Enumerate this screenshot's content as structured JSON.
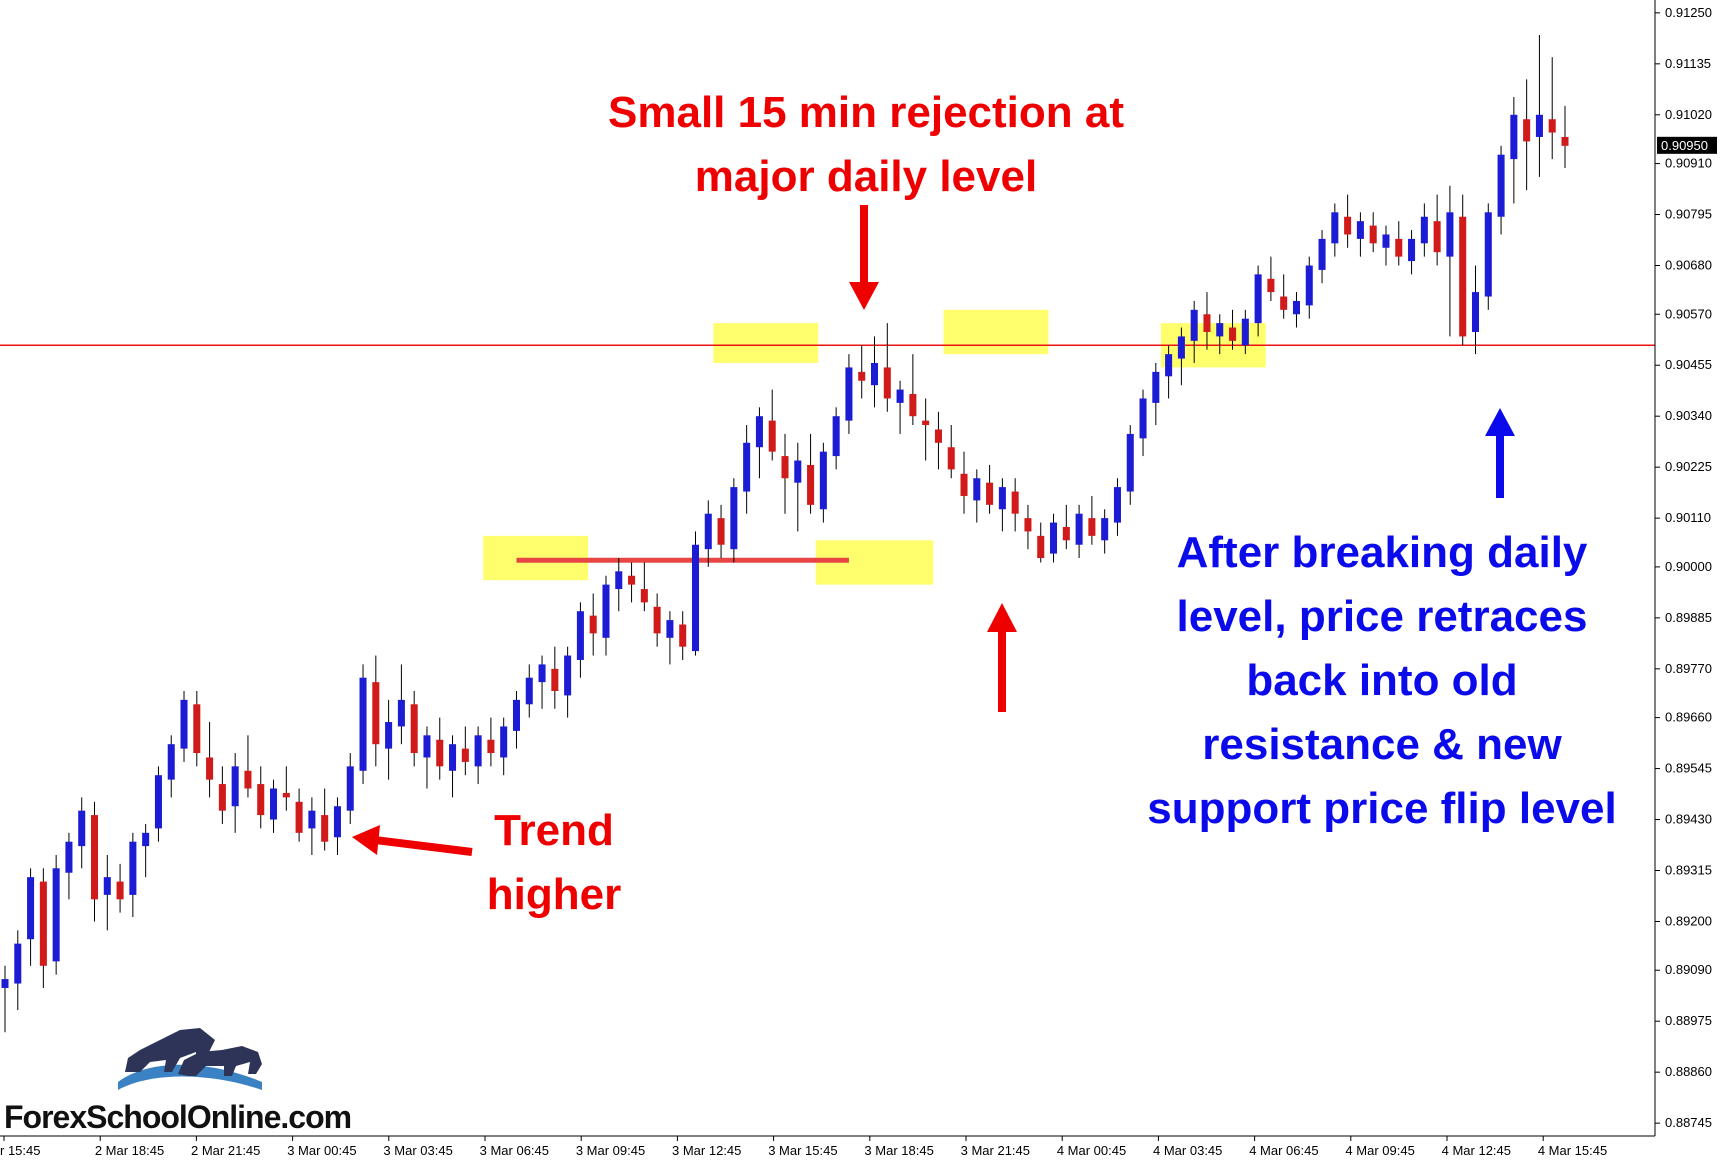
{
  "chart_data": {
    "type": "candlestick",
    "ylim": [
      0.88716,
      0.91279
    ],
    "yticks": [
      "0.91250",
      "0.91135",
      "0.91020",
      "0.90910",
      "0.90795",
      "0.90680",
      "0.90570",
      "0.90455",
      "0.90340",
      "0.90225",
      "0.90110",
      "0.90000",
      "0.89885",
      "0.89770",
      "0.89660",
      "0.89545",
      "0.89430",
      "0.89315",
      "0.89200",
      "0.89090",
      "0.88975",
      "0.88860",
      "0.88745"
    ],
    "ytick_values": [
      0.9125,
      0.91135,
      0.9102,
      0.9091,
      0.90795,
      0.9068,
      0.9057,
      0.90455,
      0.9034,
      0.90225,
      0.9011,
      0.9,
      0.89885,
      0.8977,
      0.8966,
      0.89545,
      0.8943,
      0.89315,
      0.892,
      0.8909,
      0.88975,
      0.8886,
      0.88745
    ],
    "current_price_label": "0.90950",
    "current_price": 0.9095,
    "xticks": [
      "r 15:45",
      "2 Mar 18:45",
      "2 Mar 21:45",
      "3 Mar 00:45",
      "3 Mar 03:45",
      "3 Mar 06:45",
      "3 Mar 09:45",
      "3 Mar 12:45",
      "3 Mar 15:45",
      "3 Mar 18:45",
      "3 Mar 21:45",
      "4 Mar 00:45",
      "4 Mar 03:45",
      "4 Mar 06:45",
      "4 Mar 09:45",
      "4 Mar 12:45",
      "4 Mar 15:45"
    ],
    "candles": [
      [
        0.8905,
        0.891,
        0.8895,
        0.8907
      ],
      [
        0.8906,
        0.8918,
        0.89,
        0.8915
      ],
      [
        0.8916,
        0.8932,
        0.891,
        0.893
      ],
      [
        0.8929,
        0.8932,
        0.8905,
        0.891
      ],
      [
        0.8911,
        0.8935,
        0.8908,
        0.8932
      ],
      [
        0.8931,
        0.894,
        0.8925,
        0.8938
      ],
      [
        0.8937,
        0.8948,
        0.8932,
        0.8945
      ],
      [
        0.8944,
        0.8947,
        0.892,
        0.8925
      ],
      [
        0.8926,
        0.8935,
        0.8918,
        0.893
      ],
      [
        0.8929,
        0.8933,
        0.8922,
        0.8925
      ],
      [
        0.8926,
        0.894,
        0.8921,
        0.8938
      ],
      [
        0.8937,
        0.8942,
        0.893,
        0.894
      ],
      [
        0.8941,
        0.8955,
        0.8938,
        0.8953
      ],
      [
        0.8952,
        0.8962,
        0.8948,
        0.896
      ],
      [
        0.8959,
        0.8972,
        0.8956,
        0.897
      ],
      [
        0.8969,
        0.8972,
        0.8955,
        0.8958
      ],
      [
        0.8957,
        0.8965,
        0.8948,
        0.8952
      ],
      [
        0.8951,
        0.8955,
        0.8942,
        0.8945
      ],
      [
        0.8946,
        0.8958,
        0.894,
        0.8955
      ],
      [
        0.8954,
        0.8962,
        0.8948,
        0.895
      ],
      [
        0.8951,
        0.8955,
        0.8941,
        0.8944
      ],
      [
        0.8943,
        0.8952,
        0.894,
        0.895
      ],
      [
        0.8949,
        0.8955,
        0.8945,
        0.8948
      ],
      [
        0.8947,
        0.895,
        0.8938,
        0.894
      ],
      [
        0.8941,
        0.8948,
        0.8935,
        0.8945
      ],
      [
        0.8944,
        0.895,
        0.8936,
        0.8938
      ],
      [
        0.8939,
        0.8948,
        0.8935,
        0.8946
      ],
      [
        0.8945,
        0.8958,
        0.8942,
        0.8955
      ],
      [
        0.8954,
        0.8978,
        0.8951,
        0.8975
      ],
      [
        0.8974,
        0.898,
        0.8955,
        0.896
      ],
      [
        0.8959,
        0.897,
        0.8952,
        0.8965
      ],
      [
        0.8964,
        0.8978,
        0.896,
        0.897
      ],
      [
        0.8969,
        0.8972,
        0.8955,
        0.8958
      ],
      [
        0.8957,
        0.8964,
        0.895,
        0.8962
      ],
      [
        0.8961,
        0.8966,
        0.8952,
        0.8955
      ],
      [
        0.8954,
        0.8962,
        0.8948,
        0.896
      ],
      [
        0.8959,
        0.8964,
        0.8953,
        0.8956
      ],
      [
        0.8955,
        0.8964,
        0.8951,
        0.8962
      ],
      [
        0.8961,
        0.8966,
        0.8955,
        0.8958
      ],
      [
        0.8957,
        0.8966,
        0.8953,
        0.8964
      ],
      [
        0.8963,
        0.8972,
        0.8959,
        0.897
      ],
      [
        0.8969,
        0.8978,
        0.8966,
        0.8975
      ],
      [
        0.8974,
        0.898,
        0.8968,
        0.8978
      ],
      [
        0.8977,
        0.8982,
        0.8968,
        0.8972
      ],
      [
        0.8971,
        0.8982,
        0.8966,
        0.898
      ],
      [
        0.8979,
        0.8992,
        0.8975,
        0.899
      ],
      [
        0.8989,
        0.8994,
        0.898,
        0.8985
      ],
      [
        0.8984,
        0.8998,
        0.898,
        0.8996
      ],
      [
        0.8995,
        0.9002,
        0.899,
        0.8999
      ],
      [
        0.8998,
        0.9001,
        0.8992,
        0.8996
      ],
      [
        0.8995,
        0.9001,
        0.899,
        0.8992
      ],
      [
        0.8991,
        0.8994,
        0.8982,
        0.8985
      ],
      [
        0.8984,
        0.899,
        0.8978,
        0.8988
      ],
      [
        0.8987,
        0.899,
        0.8979,
        0.8982
      ],
      [
        0.8981,
        0.9008,
        0.898,
        0.9005
      ],
      [
        0.9004,
        0.9015,
        0.9,
        0.9012
      ],
      [
        0.9011,
        0.9014,
        0.9002,
        0.9005
      ],
      [
        0.9004,
        0.902,
        0.9001,
        0.9018
      ],
      [
        0.9017,
        0.9032,
        0.9012,
        0.9028
      ],
      [
        0.9027,
        0.9036,
        0.902,
        0.9034
      ],
      [
        0.9033,
        0.904,
        0.9024,
        0.9026
      ],
      [
        0.9025,
        0.903,
        0.9012,
        0.902
      ],
      [
        0.9019,
        0.9028,
        0.9008,
        0.9024
      ],
      [
        0.9023,
        0.903,
        0.9012,
        0.9014
      ],
      [
        0.9013,
        0.9028,
        0.901,
        0.9026
      ],
      [
        0.9025,
        0.9036,
        0.9022,
        0.9034
      ],
      [
        0.9033,
        0.9048,
        0.903,
        0.9045
      ],
      [
        0.9044,
        0.905,
        0.9038,
        0.9042
      ],
      [
        0.9041,
        0.9052,
        0.9036,
        0.9046
      ],
      [
        0.9045,
        0.9055,
        0.9035,
        0.9038
      ],
      [
        0.9037,
        0.9042,
        0.903,
        0.904
      ],
      [
        0.9039,
        0.9048,
        0.9032,
        0.9034
      ],
      [
        0.9033,
        0.9038,
        0.9024,
        0.9032
      ],
      [
        0.9031,
        0.9035,
        0.9022,
        0.9028
      ],
      [
        0.9027,
        0.9032,
        0.902,
        0.9022
      ],
      [
        0.9021,
        0.9026,
        0.9012,
        0.9016
      ],
      [
        0.9015,
        0.9022,
        0.901,
        0.902
      ],
      [
        0.9019,
        0.9023,
        0.9012,
        0.9014
      ],
      [
        0.9013,
        0.902,
        0.9008,
        0.9018
      ],
      [
        0.9017,
        0.902,
        0.9008,
        0.9012
      ],
      [
        0.9011,
        0.9014,
        0.9004,
        0.9008
      ],
      [
        0.9007,
        0.901,
        0.9001,
        0.9002
      ],
      [
        0.9003,
        0.9012,
        0.9001,
        0.901
      ],
      [
        0.9009,
        0.9014,
        0.9004,
        0.9006
      ],
      [
        0.9005,
        0.9014,
        0.9002,
        0.9012
      ],
      [
        0.9011,
        0.9016,
        0.9005,
        0.9007
      ],
      [
        0.9006,
        0.9013,
        0.9003,
        0.9011
      ],
      [
        0.901,
        0.902,
        0.9007,
        0.9018
      ],
      [
        0.9017,
        0.9032,
        0.9014,
        0.903
      ],
      [
        0.9029,
        0.904,
        0.9025,
        0.9038
      ],
      [
        0.9037,
        0.9046,
        0.9032,
        0.9044
      ],
      [
        0.9043,
        0.905,
        0.9038,
        0.9048
      ],
      [
        0.9047,
        0.9054,
        0.9041,
        0.9052
      ],
      [
        0.9051,
        0.906,
        0.9046,
        0.9058
      ],
      [
        0.9057,
        0.9062,
        0.9049,
        0.9053
      ],
      [
        0.9052,
        0.9057,
        0.9048,
        0.9055
      ],
      [
        0.9054,
        0.9058,
        0.9049,
        0.9051
      ],
      [
        0.905,
        0.9058,
        0.9048,
        0.9056
      ],
      [
        0.9055,
        0.9068,
        0.9052,
        0.9066
      ],
      [
        0.9065,
        0.907,
        0.906,
        0.9062
      ],
      [
        0.9061,
        0.9066,
        0.9056,
        0.9058
      ],
      [
        0.9057,
        0.9062,
        0.9054,
        0.906
      ],
      [
        0.9059,
        0.907,
        0.9056,
        0.9068
      ],
      [
        0.9067,
        0.9076,
        0.9064,
        0.9074
      ],
      [
        0.9073,
        0.9082,
        0.907,
        0.908
      ],
      [
        0.9079,
        0.9084,
        0.9072,
        0.9075
      ],
      [
        0.9074,
        0.908,
        0.907,
        0.9078
      ],
      [
        0.9077,
        0.908,
        0.9071,
        0.9073
      ],
      [
        0.9072,
        0.9077,
        0.9068,
        0.9075
      ],
      [
        0.9074,
        0.9078,
        0.9068,
        0.907
      ],
      [
        0.9069,
        0.9076,
        0.9066,
        0.9074
      ],
      [
        0.9073,
        0.9082,
        0.907,
        0.9079
      ],
      [
        0.9078,
        0.9084,
        0.9068,
        0.9071
      ],
      [
        0.907,
        0.9086,
        0.9052,
        0.908
      ],
      [
        0.9079,
        0.9084,
        0.905,
        0.9052
      ],
      [
        0.9053,
        0.9068,
        0.9048,
        0.9062
      ],
      [
        0.9061,
        0.9082,
        0.9058,
        0.908
      ],
      [
        0.9079,
        0.9095,
        0.9075,
        0.9093
      ],
      [
        0.9092,
        0.9106,
        0.9082,
        0.9102
      ],
      [
        0.9101,
        0.911,
        0.9085,
        0.9096
      ],
      [
        0.9097,
        0.912,
        0.9088,
        0.9102
      ],
      [
        0.9101,
        0.9115,
        0.9092,
        0.9098
      ],
      [
        0.9097,
        0.9104,
        0.909,
        0.9095
      ]
    ],
    "price_lines": [
      {
        "name": "major-daily-level",
        "value": 0.905,
        "color": "#ee1111"
      },
      {
        "name": "support-level",
        "value": 0.90015,
        "color": "#e84545",
        "from_candle": 40,
        "to_candle": 66
      }
    ],
    "highlight_zones": [
      {
        "from_candle": 38,
        "to_candle": 45,
        "low": 0.8997,
        "high": 0.9007
      },
      {
        "from_candle": 56,
        "to_candle": 63,
        "low": 0.9046,
        "high": 0.9055
      },
      {
        "from_candle": 64,
        "to_candle": 72,
        "low": 0.8996,
        "high": 0.9006
      },
      {
        "from_candle": 74,
        "to_candle": 81,
        "low": 0.9048,
        "high": 0.9058
      },
      {
        "from_candle": 91,
        "to_candle": 98,
        "low": 0.9045,
        "high": 0.9055
      }
    ],
    "colors": {
      "bull": "#1c1cd4",
      "bear": "#d11a1a",
      "wick": "#000000",
      "highlight": "#ffff55",
      "grid_axis": "#000000"
    },
    "annotations": [
      {
        "name": "rejection-note",
        "lines": [
          "Small 15 min rejection at",
          "major daily level"
        ],
        "color": "#ee0000"
      },
      {
        "name": "trend-note",
        "lines": [
          "Trend",
          "higher"
        ],
        "color": "#ee0000"
      },
      {
        "name": "retrace-note",
        "lines": [
          "After breaking daily",
          "level, price retraces",
          "back into old",
          "resistance & new",
          "support price flip level"
        ],
        "color": "#0a0aea"
      }
    ]
  },
  "logo": {
    "text": "ForexSchoolOnline.com",
    "icon": "bull-bear-logo-icon"
  }
}
